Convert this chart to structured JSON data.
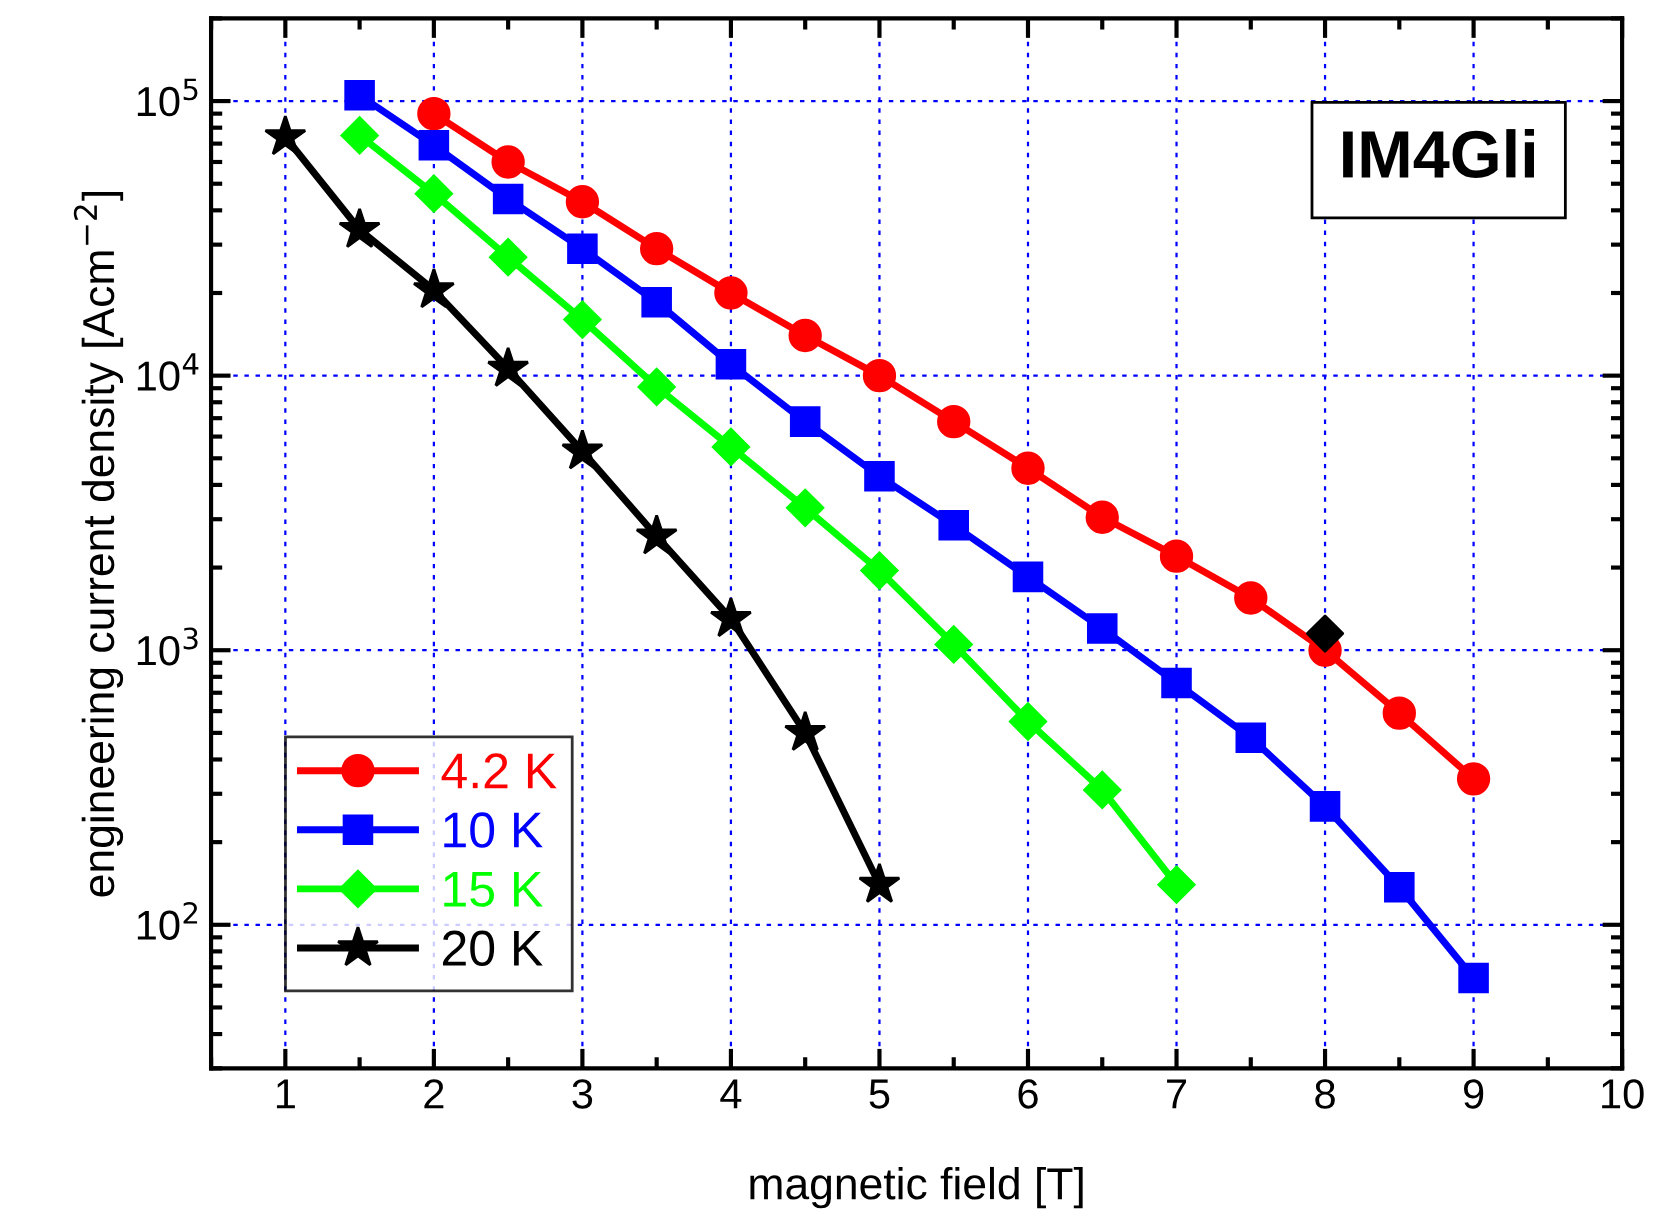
{
  "chart_data": {
    "type": "line",
    "xlabel": "magnetic field [T]",
    "ylabel": "engineering current density [Acm$^{−2}$]",
    "log": "y",
    "xlim": [
      0.5,
      10
    ],
    "xticks": [
      1,
      2,
      3,
      4,
      5,
      6,
      7,
      8,
      9,
      10
    ],
    "ylim": [
      30,
      200000
    ],
    "yticks": [
      {
        "value": 100,
        "label": "10$^{2}$"
      },
      {
        "value": 1000,
        "label": "10$^{3}$"
      },
      {
        "value": 10000,
        "label": "10$^{4}$"
      },
      {
        "value": 100000,
        "label": "10$^{5}$"
      }
    ],
    "grid": true,
    "legend": "bottom left",
    "line_style": "solid",
    "annotations": [
      "IM4Gli"
    ],
    "series": [
      {
        "name": "4.2 K",
        "color": "#ff0000",
        "marker": "circle",
        "x": [
          2,
          2.5,
          3,
          3.5,
          4,
          4.5,
          5,
          5.5,
          6,
          6.5,
          7,
          7.5,
          8,
          8.5,
          9
        ],
        "values": [
          90000,
          60000,
          43000,
          29000,
          20000,
          14000,
          10000,
          6800,
          4600,
          3050,
          2200,
          1550,
          1000,
          590,
          340
        ]
      },
      {
        "name": "10 K",
        "color": "#0000ff",
        "marker": "square",
        "x": [
          1.5,
          2,
          2.5,
          3,
          3.5,
          4,
          4.5,
          5,
          5.5,
          6,
          6.5,
          7,
          7.5,
          8,
          8.5,
          9
        ],
        "values": [
          105000,
          69000,
          44000,
          29000,
          18500,
          11000,
          6800,
          4300,
          2850,
          1850,
          1200,
          760,
          480,
          270,
          137,
          64
        ]
      },
      {
        "name": "15 K",
        "color": "#00ff00",
        "marker": "diamond",
        "x": [
          1.5,
          2,
          2.5,
          3,
          3.5,
          4,
          4.5,
          5,
          5.5,
          6,
          6.5,
          7
        ],
        "values": [
          75000,
          46000,
          27000,
          16000,
          9100,
          5500,
          3300,
          1950,
          1050,
          550,
          310,
          140
        ]
      },
      {
        "name": "20 K",
        "color": "#000000",
        "marker": "star",
        "x": [
          1,
          1.5,
          2,
          2.5,
          3,
          3.5,
          4,
          4.5,
          5
        ],
        "values": [
          74000,
          34000,
          20500,
          10600,
          5300,
          2600,
          1300,
          500,
          140
        ]
      },
      {
        "type": "scatter",
        "color": "#000000",
        "marker": "diamond",
        "x": [
          8
        ],
        "values": [
          1150
        ]
      }
    ]
  }
}
